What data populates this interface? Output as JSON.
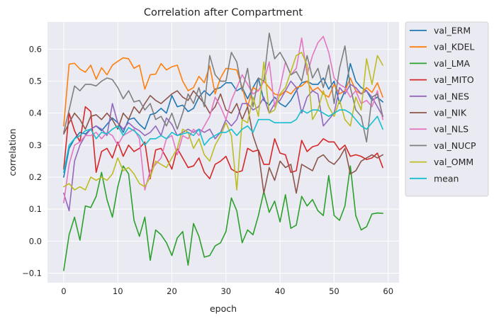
{
  "chart_data": {
    "type": "line",
    "title": "Correlation after Compartment",
    "xlabel": "epoch",
    "ylabel": "correlation",
    "xlim": [
      -3,
      62
    ],
    "ylim": [
      -0.13,
      0.685
    ],
    "xticks": [
      0,
      10,
      20,
      30,
      40,
      50,
      60
    ],
    "xtick_labels": [
      "0",
      "10",
      "20",
      "30",
      "40",
      "50",
      "60"
    ],
    "yticks": [
      -0.1,
      0.0,
      0.1,
      0.2,
      0.3,
      0.4,
      0.5,
      0.6
    ],
    "ytick_labels": [
      "−0.1",
      "0.0",
      "0.1",
      "0.2",
      "0.3",
      "0.4",
      "0.5",
      "0.6"
    ],
    "grid": true,
    "legend_position": "outside-right",
    "x": [
      0,
      1,
      2,
      3,
      4,
      5,
      6,
      7,
      8,
      9,
      10,
      11,
      12,
      13,
      14,
      15,
      16,
      17,
      18,
      19,
      20,
      21,
      22,
      23,
      24,
      25,
      26,
      27,
      28,
      29,
      30,
      31,
      32,
      33,
      34,
      35,
      36,
      37,
      38,
      39,
      40,
      41,
      42,
      43,
      44,
      45,
      46,
      47,
      48,
      49,
      50,
      51,
      52,
      53,
      54,
      55,
      56,
      57,
      58,
      59
    ],
    "series": [
      {
        "name": "val_ERM",
        "color": "#1f77b4",
        "values": [
          0.2,
          0.29,
          0.32,
          0.34,
          0.335,
          0.35,
          0.36,
          0.345,
          0.365,
          0.385,
          0.37,
          0.34,
          0.38,
          0.385,
          0.365,
          0.35,
          0.395,
          0.4,
          0.415,
          0.4,
          0.455,
          0.42,
          0.425,
          0.405,
          0.415,
          0.45,
          0.47,
          0.455,
          0.475,
          0.48,
          0.495,
          0.495,
          0.47,
          0.48,
          0.445,
          0.48,
          0.51,
          0.44,
          0.425,
          0.45,
          0.43,
          0.42,
          0.44,
          0.47,
          0.495,
          0.5,
          0.49,
          0.49,
          0.51,
          0.475,
          0.5,
          0.43,
          0.47,
          0.555,
          0.5,
          0.48,
          0.47,
          0.44,
          0.45,
          0.435
        ]
      },
      {
        "name": "val_KDEL",
        "color": "#ff7f0e",
        "values": [
          0.36,
          0.553,
          0.556,
          0.538,
          0.528,
          0.55,
          0.506,
          0.542,
          0.52,
          0.55,
          0.562,
          0.573,
          0.57,
          0.54,
          0.55,
          0.475,
          0.52,
          0.522,
          0.555,
          0.535,
          0.545,
          0.55,
          0.5,
          0.47,
          0.48,
          0.515,
          0.495,
          0.548,
          0.46,
          0.51,
          0.54,
          0.538,
          0.535,
          0.48,
          0.42,
          0.48,
          0.47,
          0.5,
          0.48,
          0.46,
          0.455,
          0.47,
          0.46,
          0.48,
          0.485,
          0.5,
          0.47,
          0.48,
          0.46,
          0.45,
          0.49,
          0.46,
          0.47,
          0.51,
          0.47,
          0.46,
          0.48,
          0.465,
          0.495,
          0.45
        ]
      },
      {
        "name": "val_LMA",
        "color": "#2ca02c",
        "values": [
          -0.092,
          0.02,
          0.075,
          0.003,
          0.11,
          0.105,
          0.14,
          0.215,
          0.13,
          0.075,
          0.17,
          0.235,
          0.21,
          0.065,
          0.015,
          0.075,
          -0.06,
          0.035,
          0.02,
          -0.005,
          -0.045,
          0.01,
          0.03,
          -0.075,
          0.055,
          0.015,
          -0.05,
          -0.045,
          -0.015,
          -0.005,
          0.03,
          0.135,
          0.095,
          -0.005,
          0.035,
          0.02,
          0.08,
          0.155,
          0.09,
          0.125,
          0.06,
          0.145,
          0.04,
          0.05,
          0.14,
          0.11,
          0.13,
          0.095,
          0.08,
          0.205,
          0.08,
          0.065,
          0.11,
          0.235,
          0.08,
          0.035,
          0.045,
          0.085,
          0.088,
          0.087
        ]
      },
      {
        "name": "val_MITO",
        "color": "#d62728",
        "values": [
          0.225,
          0.4,
          0.345,
          0.31,
          0.42,
          0.405,
          0.215,
          0.28,
          0.29,
          0.26,
          0.31,
          0.265,
          0.3,
          0.28,
          0.29,
          0.31,
          0.195,
          0.285,
          0.29,
          0.26,
          0.225,
          0.29,
          0.26,
          0.23,
          0.235,
          0.26,
          0.215,
          0.195,
          0.24,
          0.25,
          0.265,
          0.225,
          0.215,
          0.22,
          0.29,
          0.28,
          0.285,
          0.24,
          0.24,
          0.32,
          0.275,
          0.27,
          0.215,
          0.22,
          0.315,
          0.28,
          0.295,
          0.3,
          0.32,
          0.31,
          0.31,
          0.285,
          0.3,
          0.265,
          0.27,
          0.265,
          0.255,
          0.26,
          0.275,
          0.23
        ]
      },
      {
        "name": "val_NES",
        "color": "#9467bd",
        "values": [
          0.15,
          0.095,
          0.25,
          0.3,
          0.33,
          0.35,
          0.36,
          0.35,
          0.33,
          0.43,
          0.37,
          0.35,
          0.37,
          0.355,
          0.345,
          0.33,
          0.34,
          0.36,
          0.33,
          0.385,
          0.365,
          0.33,
          0.34,
          0.35,
          0.34,
          0.35,
          0.34,
          0.35,
          0.32,
          0.34,
          0.38,
          0.36,
          0.38,
          0.43,
          0.43,
          0.41,
          0.42,
          0.45,
          0.4,
          0.43,
          0.44,
          0.47,
          0.5,
          0.48,
          0.4,
          0.45,
          0.47,
          0.46,
          0.36,
          0.38,
          0.4,
          0.48,
          0.46,
          0.49,
          0.48,
          0.46,
          0.47,
          0.45,
          0.42,
          0.39
        ]
      },
      {
        "name": "val_NIK",
        "color": "#8c564b",
        "values": [
          0.335,
          0.37,
          0.4,
          0.38,
          0.35,
          0.39,
          0.395,
          0.38,
          0.4,
          0.38,
          0.35,
          0.4,
          0.38,
          0.42,
          0.4,
          0.43,
          0.455,
          0.44,
          0.43,
          0.445,
          0.46,
          0.47,
          0.45,
          0.44,
          0.47,
          0.45,
          0.43,
          0.4,
          0.42,
          0.46,
          0.41,
          0.4,
          0.43,
          0.38,
          0.42,
          0.33,
          0.28,
          0.15,
          0.23,
          0.19,
          0.25,
          0.23,
          0.24,
          0.15,
          0.24,
          0.23,
          0.22,
          0.26,
          0.27,
          0.25,
          0.24,
          0.26,
          0.29,
          0.21,
          0.22,
          0.25,
          0.26,
          0.27,
          0.26,
          0.27
        ]
      },
      {
        "name": "val_NLS",
        "color": "#e377c2",
        "values": [
          0.12,
          0.24,
          0.3,
          0.31,
          0.33,
          0.33,
          0.34,
          0.32,
          0.34,
          0.33,
          0.3,
          0.33,
          0.34,
          0.35,
          0.32,
          0.16,
          0.22,
          0.24,
          0.26,
          0.32,
          0.33,
          0.27,
          0.33,
          0.32,
          0.35,
          0.33,
          0.36,
          0.39,
          0.45,
          0.42,
          0.38,
          0.44,
          0.48,
          0.52,
          0.49,
          0.46,
          0.47,
          0.5,
          0.56,
          0.42,
          0.48,
          0.56,
          0.52,
          0.54,
          0.635,
          0.52,
          0.58,
          0.62,
          0.64,
          0.59,
          0.51,
          0.49,
          0.48,
          0.45,
          0.47,
          0.43,
          0.44,
          0.42,
          0.47,
          0.38
        ]
      },
      {
        "name": "val_NUCP",
        "color": "#7f7f7f",
        "values": [
          0.34,
          0.41,
          0.485,
          0.47,
          0.49,
          0.49,
          0.485,
          0.5,
          0.51,
          0.505,
          0.48,
          0.445,
          0.47,
          0.435,
          0.44,
          0.41,
          0.43,
          0.38,
          0.39,
          0.36,
          0.4,
          0.35,
          0.4,
          0.46,
          0.43,
          0.48,
          0.42,
          0.58,
          0.52,
          0.5,
          0.5,
          0.59,
          0.56,
          0.47,
          0.54,
          0.42,
          0.51,
          0.5,
          0.65,
          0.57,
          0.59,
          0.56,
          0.52,
          0.53,
          0.5,
          0.58,
          0.51,
          0.54,
          0.48,
          0.55,
          0.43,
          0.54,
          0.61,
          0.48,
          0.41,
          0.39,
          0.31,
          0.45,
          0.46,
          0.39
        ]
      },
      {
        "name": "val_OMM",
        "color": "#bcbd22",
        "values": [
          0.17,
          0.18,
          0.16,
          0.17,
          0.16,
          0.2,
          0.19,
          0.2,
          0.19,
          0.21,
          0.26,
          0.22,
          0.23,
          0.21,
          0.18,
          0.17,
          0.2,
          0.25,
          0.24,
          0.23,
          0.26,
          0.29,
          0.35,
          0.34,
          0.29,
          0.32,
          0.27,
          0.25,
          0.3,
          0.33,
          0.37,
          0.33,
          0.16,
          0.38,
          0.37,
          0.45,
          0.39,
          0.56,
          0.4,
          0.41,
          0.46,
          0.48,
          0.53,
          0.58,
          0.59,
          0.55,
          0.38,
          0.41,
          0.47,
          0.42,
          0.39,
          0.44,
          0.38,
          0.36,
          0.45,
          0.41,
          0.57,
          0.49,
          0.58,
          0.55
        ]
      },
      {
        "name": "mean",
        "color": "#17becf",
        "values": [
          0.215,
          0.3,
          0.32,
          0.33,
          0.345,
          0.35,
          0.32,
          0.34,
          0.335,
          0.35,
          0.36,
          0.33,
          0.355,
          0.345,
          0.33,
          0.3,
          0.32,
          0.32,
          0.33,
          0.32,
          0.34,
          0.33,
          0.335,
          0.34,
          0.33,
          0.35,
          0.3,
          0.32,
          0.33,
          0.34,
          0.34,
          0.35,
          0.33,
          0.35,
          0.36,
          0.34,
          0.38,
          0.38,
          0.38,
          0.37,
          0.37,
          0.37,
          0.37,
          0.38,
          0.41,
          0.4,
          0.41,
          0.41,
          0.4,
          0.39,
          0.4,
          0.41,
          0.41,
          0.4,
          0.38,
          0.36,
          0.35,
          0.37,
          0.39,
          0.35
        ]
      }
    ]
  }
}
